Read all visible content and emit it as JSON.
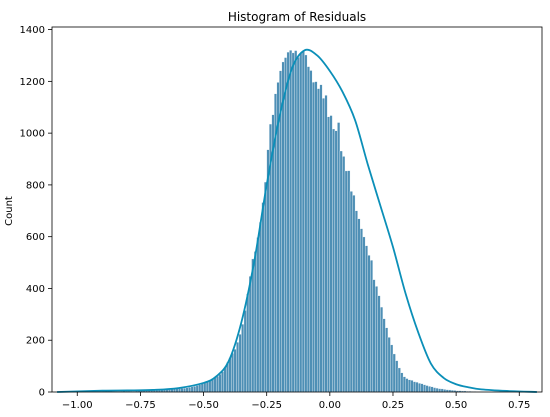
{
  "chart_data": {
    "type": "bar",
    "title": "Histogram of Residuals",
    "xlabel": "",
    "ylabel": "Count",
    "xlim": [
      -1.1,
      0.84
    ],
    "ylim": [
      0,
      1410
    ],
    "x_ticks": [
      -1.0,
      -0.75,
      -0.5,
      -0.25,
      0.0,
      0.25,
      0.5,
      0.75
    ],
    "x_tick_labels": [
      "−1.00",
      "−0.75",
      "−0.50",
      "−0.25",
      "0.00",
      "0.25",
      "0.50",
      "0.75"
    ],
    "y_ticks": [
      0,
      200,
      400,
      600,
      800,
      1000,
      1200,
      1400
    ],
    "y_tick_labels": [
      "0",
      "200",
      "400",
      "600",
      "800",
      "1000",
      "1200",
      "1400"
    ],
    "bin_start": -1.08,
    "bin_width": 0.01,
    "bar_color": "#4e8fb5",
    "kde_color": "#0b8fb8",
    "grid": false,
    "kde_curve": {
      "x": [
        -1.08,
        -0.9,
        -0.8,
        -0.7,
        -0.6,
        -0.5,
        -0.45,
        -0.4,
        -0.35,
        -0.3,
        -0.25,
        -0.2,
        -0.15,
        -0.1,
        -0.05,
        0.0,
        0.05,
        0.1,
        0.15,
        0.2,
        0.25,
        0.3,
        0.35,
        0.4,
        0.45,
        0.5,
        0.55,
        0.6,
        0.7,
        0.82
      ],
      "y": [
        0,
        5,
        6,
        8,
        15,
        35,
        60,
        120,
        270,
        500,
        800,
        1060,
        1250,
        1320,
        1300,
        1240,
        1160,
        1050,
        880,
        720,
        560,
        380,
        230,
        110,
        55,
        30,
        18,
        10,
        4,
        0
      ]
    },
    "values": [
      0,
      0,
      0,
      0,
      0,
      0,
      0,
      0,
      0,
      0,
      0,
      0,
      0,
      0,
      0,
      0,
      0,
      0,
      2,
      4,
      5,
      3,
      2,
      2,
      2,
      3,
      4,
      3,
      3,
      3,
      3,
      4,
      4,
      5,
      5,
      6,
      6,
      7,
      7,
      8,
      8,
      9,
      9,
      10,
      10,
      11,
      12,
      13,
      14,
      14,
      15,
      16,
      18,
      20,
      22,
      25,
      28,
      32,
      36,
      42,
      46,
      51,
      56,
      61,
      69,
      79,
      93,
      114,
      132,
      150,
      165,
      192,
      223,
      262,
      315,
      380,
      447,
      514,
      543,
      597,
      656,
      732,
      811,
      936,
      1035,
      1071,
      1152,
      1196,
      1241,
      1275,
      1292,
      1313,
      1320,
      1310,
      1319,
      1293,
      1309,
      1318,
      1302,
      1257,
      1242,
      1197,
      1199,
      1172,
      1187,
      1135,
      1146,
      1063,
      1068,
      1016,
      1009,
      1041,
      931,
      910,
      854,
      855,
      775,
      760,
      700,
      669,
      631,
      599,
      565,
      528,
      509,
      434,
      408,
      372,
      328,
      283,
      248,
      211,
      182,
      147,
      121,
      93,
      74,
      59,
      52,
      47,
      45,
      40,
      38,
      34,
      32,
      28,
      25,
      22,
      20,
      17,
      15,
      13,
      12,
      10,
      9,
      8,
      7,
      6,
      5,
      5,
      4,
      4,
      3,
      3,
      2,
      2,
      1,
      1,
      1,
      0,
      0,
      0,
      0,
      0,
      0,
      0,
      0,
      0,
      0,
      0,
      0,
      0,
      0,
      0
    ]
  }
}
